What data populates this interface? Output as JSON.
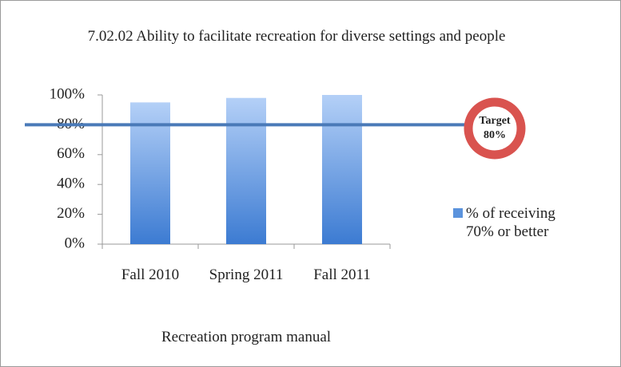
{
  "chart_data": {
    "type": "bar",
    "title": "7.02.02 Ability to facilitate recreation for diverse settings and people",
    "categories": [
      "Fall 2010",
      "Spring 2011",
      "Fall 2011"
    ],
    "series": [
      {
        "name": "% of receiving 70% or better",
        "color": "#5b93dd",
        "values": [
          95,
          98,
          100
        ]
      }
    ],
    "ylim": [
      0,
      100
    ],
    "yticks": [
      {
        "value": 0,
        "label": "0%"
      },
      {
        "value": 20,
        "label": "20%"
      },
      {
        "value": 40,
        "label": "40%"
      },
      {
        "value": 60,
        "label": "60%"
      },
      {
        "value": 80,
        "label": "80%"
      },
      {
        "value": 100,
        "label": "100%"
      }
    ],
    "xlabel": "Recreation program manual",
    "target": 80,
    "target_title": "Target",
    "target_label": "80%",
    "legend": "right"
  }
}
